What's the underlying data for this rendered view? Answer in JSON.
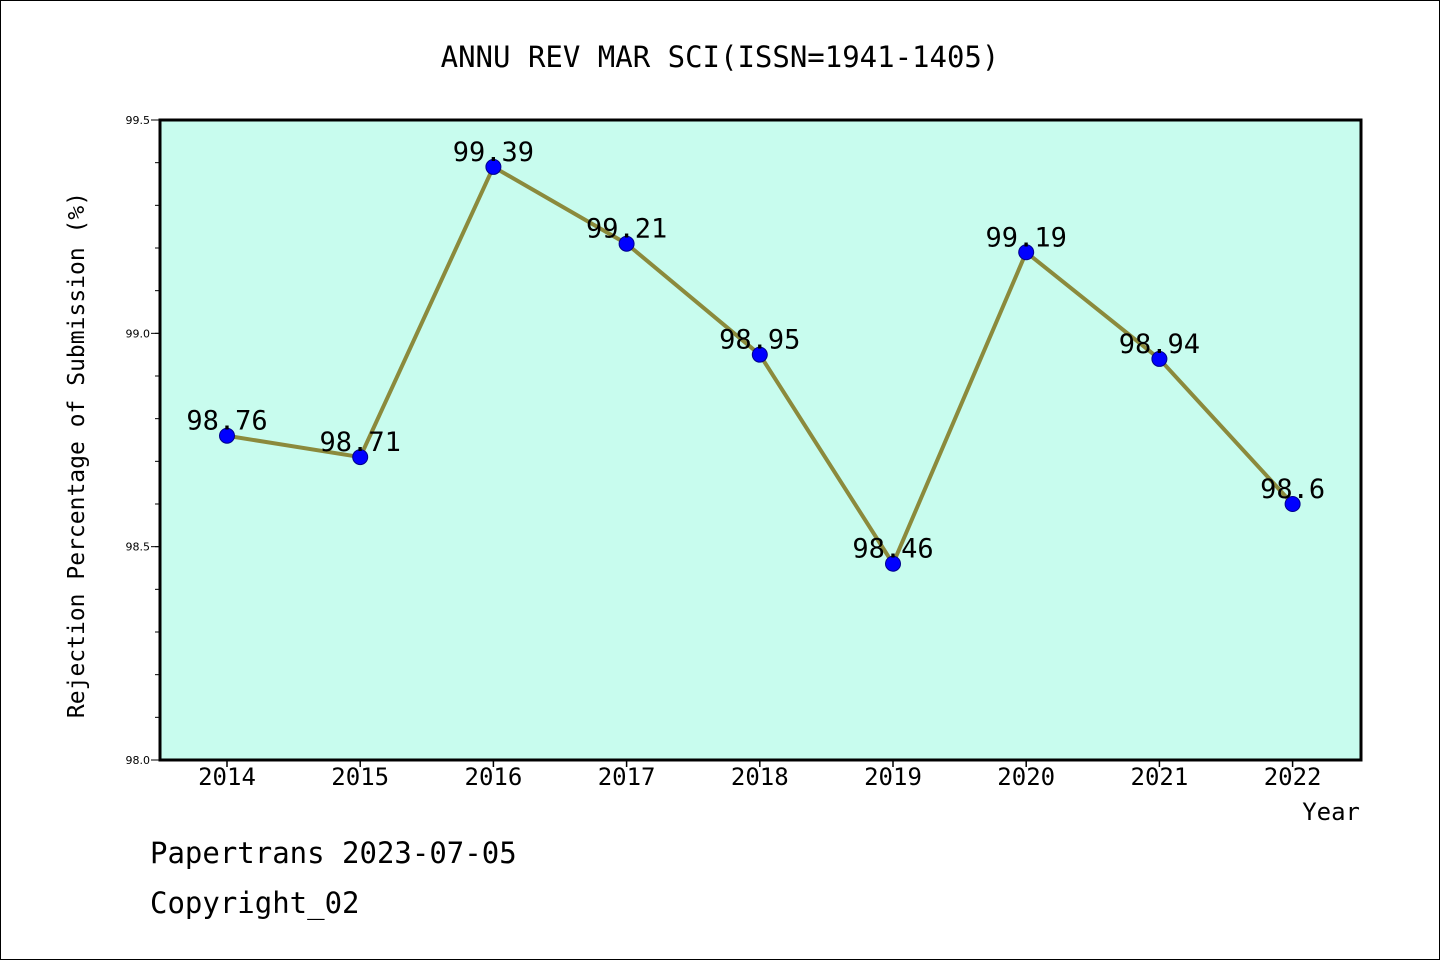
{
  "footer": {
    "line1": "Papertrans 2023-07-05",
    "line2": "Copyright_02"
  },
  "colors": {
    "plot_background": "#c8fcee",
    "line": "#8b8a3c",
    "marker": "#0000ff"
  },
  "chart_data": {
    "type": "line",
    "title": "ANNU REV MAR SCI(ISSN=1941-1405)",
    "xlabel": "Year",
    "ylabel": "Rejection Percentage of Submission (%)",
    "categories": [
      "2014",
      "2015",
      "2016",
      "2017",
      "2018",
      "2019",
      "2020",
      "2021",
      "2022"
    ],
    "series": [
      {
        "values": [
          98.76,
          98.71,
          99.39,
          99.21,
          98.95,
          98.46,
          99.19,
          98.94,
          98.6
        ],
        "labels": [
          "98.76",
          "98.71",
          "99.39",
          "99.21",
          "98.95",
          "98.46",
          "99.19",
          "98.94",
          "98.6"
        ]
      }
    ],
    "ylim": [
      98.0,
      99.5
    ],
    "yticks": [
      "98.0",
      "98.5",
      "99.0",
      "99.5"
    ],
    "grid": false,
    "legend": "none"
  }
}
